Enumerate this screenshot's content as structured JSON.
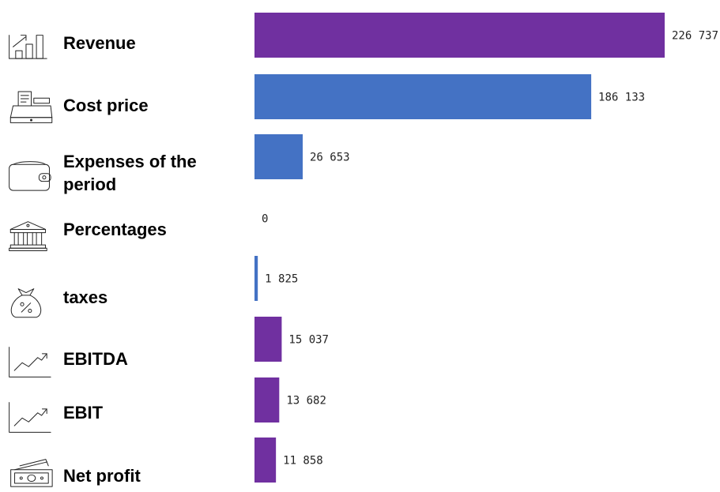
{
  "chart_data": {
    "type": "bar",
    "orientation": "horizontal",
    "categories": [
      {
        "label": [
          "Revenue"
        ],
        "icon": "bar-chart-icon"
      },
      {
        "label": [
          "Cost price"
        ],
        "icon": "cash-register-icon"
      },
      {
        "label": [
          "Expenses of the",
          "period"
        ],
        "icon": "wallet-icon"
      },
      {
        "label": [
          "Percentages"
        ],
        "icon": "bank-icon"
      },
      {
        "label": [
          "taxes"
        ],
        "icon": "percent-bag-icon"
      },
      {
        "label": [
          "EBITDA"
        ],
        "icon": "trend-up-icon"
      },
      {
        "label": [
          "EBIT"
        ],
        "icon": "trend-up-icon"
      },
      {
        "label": [
          "Net profit"
        ],
        "icon": "money-icon"
      }
    ],
    "values": [
      226737,
      186133,
      26653,
      0,
      1825,
      15037,
      13682,
      11858
    ],
    "value_labels": [
      "226 737",
      "186 133",
      "26 653",
      "0",
      "1 825",
      "15 037",
      "13 682",
      "11 858"
    ],
    "bar_colors": [
      "#7030A0",
      "#4472C4",
      "#4472C4",
      "#4472C4",
      "#4472C4",
      "#7030A0",
      "#7030A0",
      "#7030A0"
    ],
    "xlim": [
      0,
      226737
    ],
    "grid": false,
    "legend": "none"
  }
}
